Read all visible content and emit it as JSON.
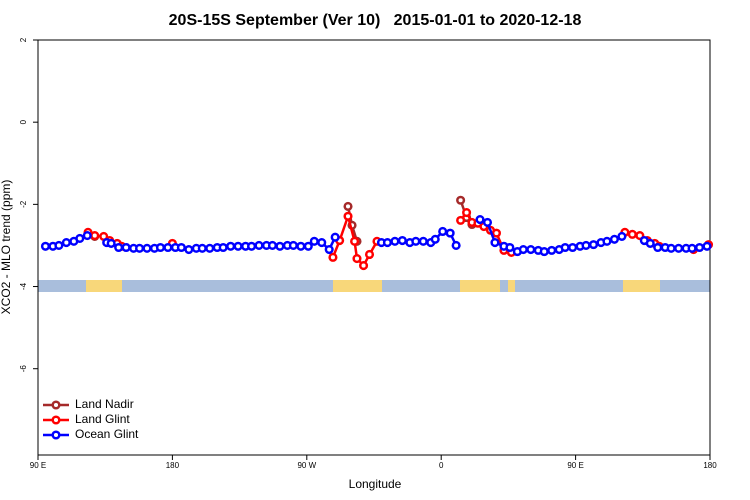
{
  "chart_data": {
    "type": "line",
    "title": "20S-15S September (Ver 10)   2015-01-01 to 2020-12-18",
    "x_label": "Longitude",
    "y_label": "XCO2 - MLO trend (ppm)",
    "xlim": [
      90,
      540
    ],
    "ylim": [
      -8.1,
      2
    ],
    "xticks": [
      {
        "value": 90,
        "label": "90 E"
      },
      {
        "value": 180,
        "label": "180"
      },
      {
        "value": 270,
        "label": "90 W"
      },
      {
        "value": 360,
        "label": "0"
      },
      {
        "value": 450,
        "label": "90 E"
      },
      {
        "value": 540,
        "label": "180"
      }
    ],
    "yticks": [
      2,
      0,
      -2,
      -4,
      -6
    ],
    "legend": "bottomleft",
    "series": [
      {
        "name": "Land Nadir",
        "color": "#a52a2a",
        "x": [
          128,
          200,
          297.6,
          300.3,
          303.6,
          340,
          373,
          377,
          380.6
        ],
        "values": [
          -2.78,
          null,
          -2.05,
          -2.51,
          -2.9,
          null,
          -1.9,
          -2.32,
          -2.49
        ]
      },
      {
        "name": "Land Glint",
        "color": "#ff0000",
        "x": [
          123.5,
          128,
          134,
          138,
          143,
          146,
          160,
          180,
          230,
          287.5,
          292,
          297.6,
          302,
          303.6,
          308,
          312,
          317,
          345,
          373,
          377,
          380.6,
          384.6,
          388.6,
          393,
          397,
          402,
          407,
          440,
          483,
          488,
          493,
          498,
          503,
          506,
          520,
          529,
          535,
          539
        ],
        "values": [
          -2.68,
          -2.76,
          -2.78,
          -2.88,
          -2.95,
          -3.02,
          null,
          -2.95,
          null,
          -3.29,
          -2.88,
          -2.29,
          -2.9,
          -3.32,
          -3.49,
          -3.22,
          -2.9,
          null,
          -2.39,
          -2.2,
          -2.44,
          -2.46,
          -2.54,
          -2.63,
          -2.7,
          -3.12,
          -3.17,
          null,
          -2.68,
          -2.73,
          -2.76,
          -2.88,
          -2.95,
          -3.02,
          null,
          -3.1,
          null,
          -2.98
        ]
      },
      {
        "name": "Ocean Glint",
        "color": "#0000ff",
        "x": [
          95,
          100,
          104,
          109,
          114,
          118,
          123,
          130,
          136,
          139,
          144,
          149,
          154,
          158,
          163,
          168,
          172,
          177,
          182,
          186,
          191,
          196,
          200,
          205,
          210,
          214,
          219,
          224,
          229,
          233,
          238,
          243,
          247,
          252,
          257,
          261,
          266,
          271,
          275,
          280,
          285,
          289,
          305,
          320,
          324,
          329,
          334,
          339,
          343,
          348,
          353,
          356,
          361,
          366,
          370,
          378,
          386,
          391,
          396,
          402,
          406,
          411,
          415,
          420,
          425,
          429,
          434,
          439,
          443,
          448,
          453,
          457,
          462,
          467,
          471,
          476,
          481,
          490,
          496,
          500,
          505,
          510,
          514,
          519,
          524,
          528,
          533,
          538
        ],
        "values": [
          -3.02,
          -3.02,
          -3.0,
          -2.93,
          -2.9,
          -2.83,
          -2.76,
          null,
          -2.93,
          -2.95,
          -3.05,
          -3.05,
          -3.07,
          -3.07,
          -3.07,
          -3.07,
          -3.05,
          -3.05,
          -3.05,
          -3.05,
          -3.1,
          -3.07,
          -3.07,
          -3.07,
          -3.05,
          -3.05,
          -3.02,
          -3.02,
          -3.02,
          -3.02,
          -3.0,
          -3.0,
          -3.0,
          -3.02,
          -3.0,
          -3.0,
          -3.02,
          -3.02,
          -2.9,
          -2.93,
          -3.1,
          -2.8,
          null,
          -2.93,
          -2.93,
          -2.9,
          -2.88,
          -2.93,
          -2.9,
          -2.9,
          -2.93,
          -2.85,
          -2.66,
          -2.7,
          -3.0,
          null,
          -2.37,
          -2.44,
          -2.93,
          -3.02,
          -3.05,
          -3.15,
          -3.1,
          -3.1,
          -3.12,
          -3.15,
          -3.12,
          -3.1,
          -3.05,
          -3.05,
          -3.02,
          -3.0,
          -2.98,
          -2.93,
          -2.9,
          -2.85,
          -2.78,
          null,
          -2.88,
          -2.95,
          -3.05,
          -3.05,
          -3.07,
          -3.07,
          -3.07,
          -3.07,
          -3.05,
          -3.02
        ]
      }
    ]
  }
}
